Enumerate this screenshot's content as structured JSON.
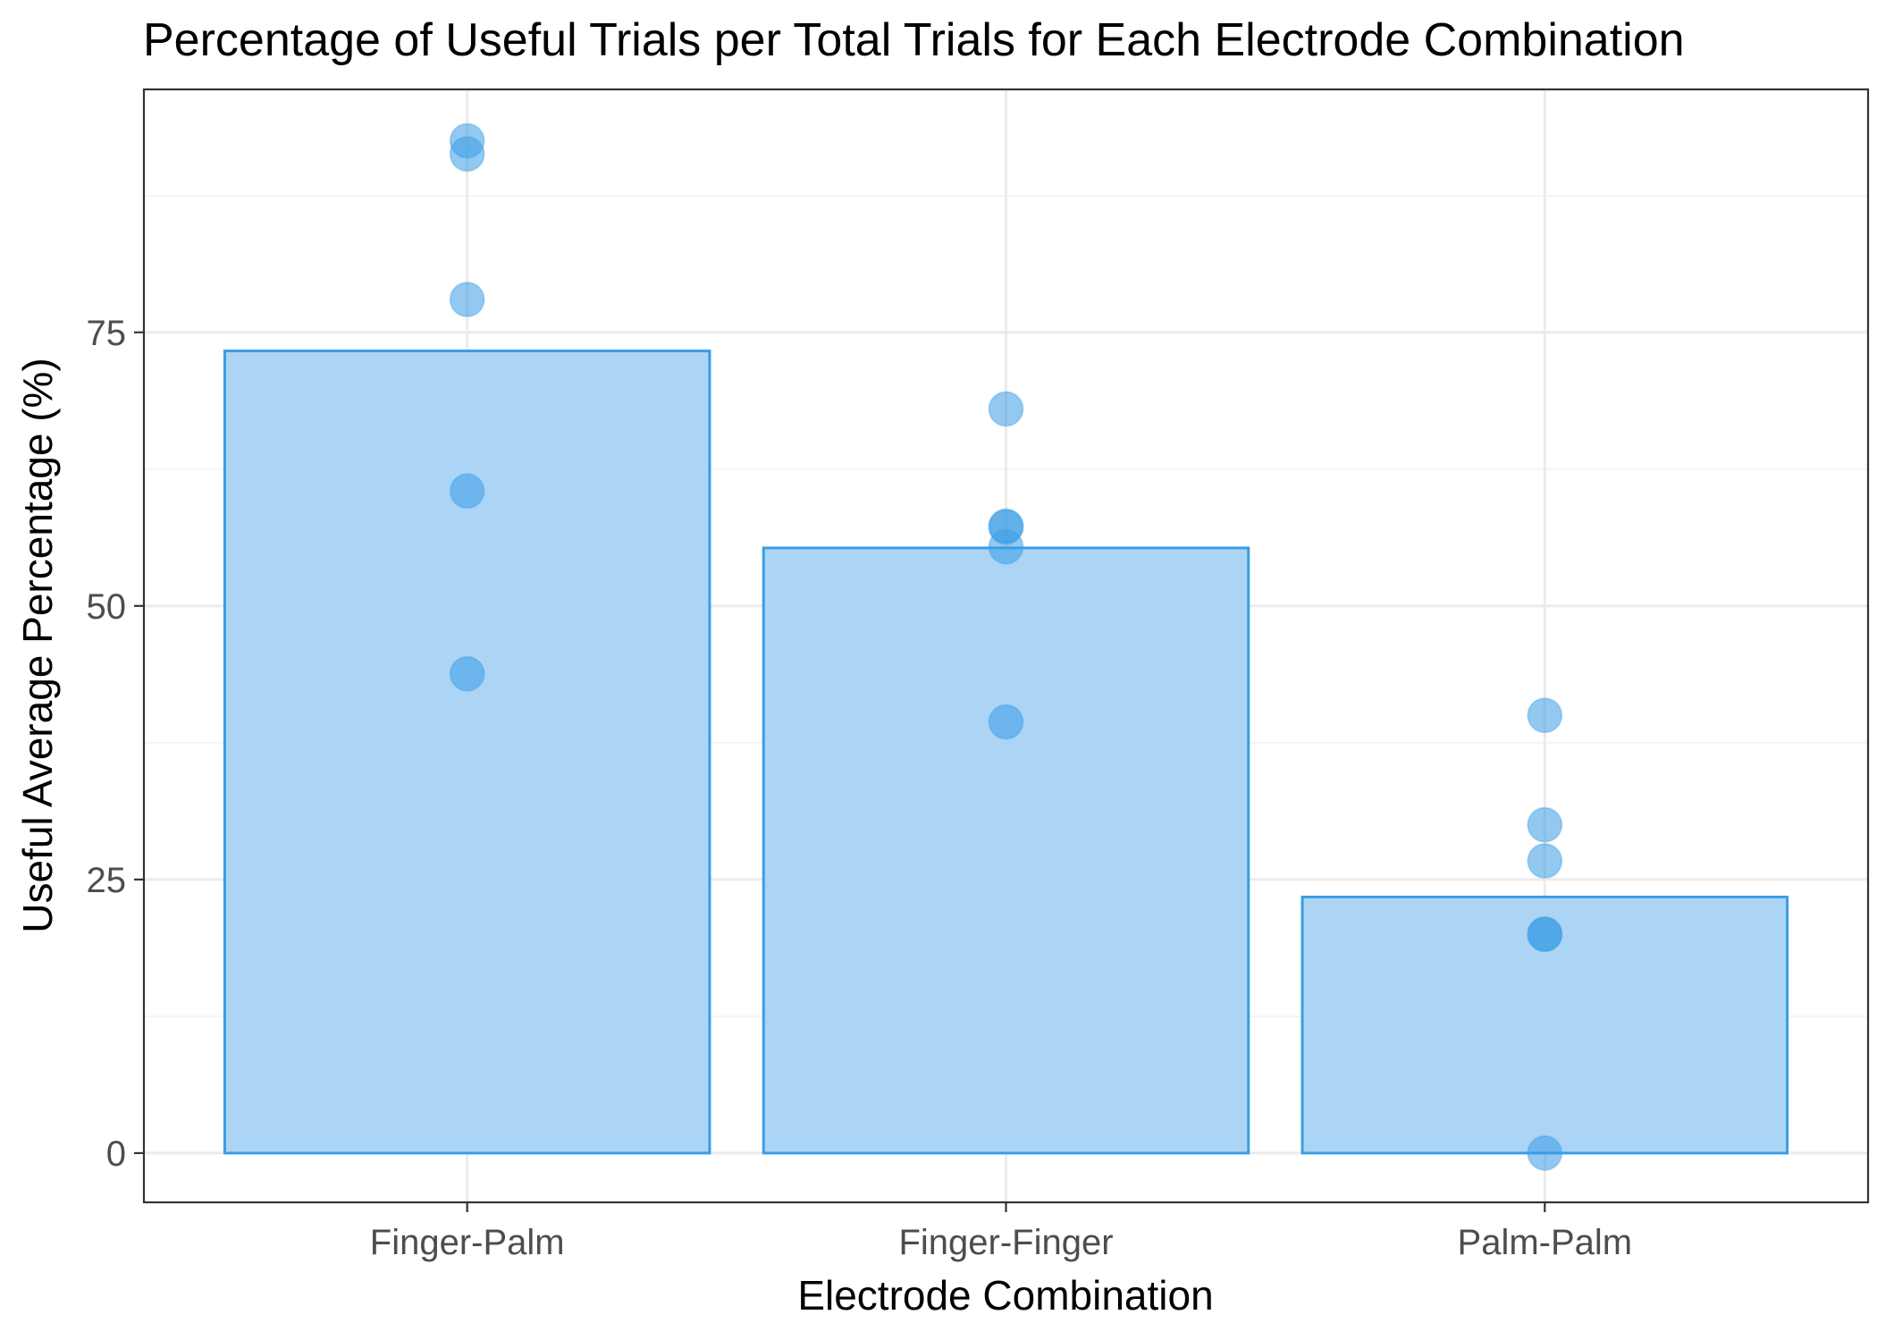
{
  "chart_data": {
    "type": "bar",
    "title": "Percentage of Useful Trials per Total Trials for Each Electrode Combination",
    "xlabel": "Electrode Combination",
    "ylabel": "Useful Average Percentage (%)",
    "categories": [
      "Finger-Palm",
      "Finger-Finger",
      "Palm-Palm"
    ],
    "values": [
      73.3,
      55.3,
      23.4
    ],
    "points": [
      [
        92.5,
        91.3,
        78.0,
        60.5,
        43.8
      ],
      [
        68.0,
        57.3,
        57.2,
        55.4,
        39.4
      ],
      [
        40.0,
        30.0,
        26.7,
        20.0,
        20.0,
        0.0
      ]
    ],
    "ylim": [
      -4.5,
      97.2
    ],
    "yticks": [
      0,
      25,
      50,
      75
    ],
    "ytick_labels": [
      "0",
      "25",
      "50",
      "75"
    ],
    "grid": true,
    "legend": "none",
    "colors": {
      "bar_fill": "#acd5f5",
      "bar_stroke": "#3a9de6",
      "point_fill": "#3a9de6",
      "point_opacity": 0.55
    }
  }
}
